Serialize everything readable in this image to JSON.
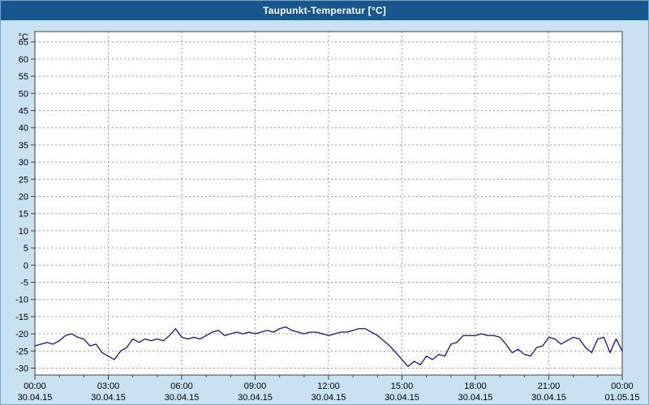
{
  "window": {
    "title": "Taupunkt-Temperatur [°C]"
  },
  "chart_data": {
    "type": "line",
    "title": "Taupunkt-Temperatur [°C]",
    "ylabel": "°C",
    "ylim": [
      -32,
      68
    ],
    "grid": true,
    "y_ticks": [
      65,
      60,
      55,
      50,
      45,
      40,
      35,
      30,
      25,
      20,
      15,
      10,
      5,
      0,
      -5,
      -10,
      -15,
      -20,
      -25,
      -30
    ],
    "x_ticks": [
      {
        "time": "00:00",
        "date": "30.04.15",
        "hour": 0
      },
      {
        "time": "03:00",
        "date": "30.04.15",
        "hour": 3
      },
      {
        "time": "06:00",
        "date": "30.04.15",
        "hour": 6
      },
      {
        "time": "09:00",
        "date": "30.04.15",
        "hour": 9
      },
      {
        "time": "12:00",
        "date": "30.04.15",
        "hour": 12
      },
      {
        "time": "15:00",
        "date": "30.04.15",
        "hour": 15
      },
      {
        "time": "18:00",
        "date": "30.04.15",
        "hour": 18
      },
      {
        "time": "21:00",
        "date": "30.04.15",
        "hour": 21
      },
      {
        "time": "00:00",
        "date": "01.05.15",
        "hour": 24
      }
    ],
    "x_range_hours": [
      0,
      24
    ],
    "x_step_hours": 0.25,
    "series": [
      {
        "name": "Taupunkt-Temperatur",
        "color": "#14148c",
        "values": [
          -23.5,
          -23,
          -22.5,
          -23,
          -22,
          -20.5,
          -20,
          -21,
          -21.5,
          -23.5,
          -23,
          -25.5,
          -26.5,
          -27.5,
          -25,
          -24,
          -21.5,
          -22.5,
          -21.5,
          -22,
          -21.5,
          -22,
          -20.5,
          -18.5,
          -21,
          -21.5,
          -21,
          -21.5,
          -20.5,
          -19.5,
          -19,
          -20.5,
          -20,
          -19.5,
          -20,
          -19.5,
          -20,
          -19.5,
          -19,
          -19.5,
          -18.5,
          -18,
          -19,
          -19.5,
          -20,
          -19.5,
          -19.5,
          -20,
          -20.5,
          -20,
          -19.5,
          -19.5,
          -19,
          -18.5,
          -18.5,
          -19.5,
          -20.5,
          -22,
          -23.5,
          -25.5,
          -27.5,
          -29.5,
          -28,
          -29,
          -26.5,
          -27.5,
          -26,
          -26.5,
          -23,
          -22.5,
          -20.5,
          -20.5,
          -20.5,
          -20,
          -20.5,
          -20.5,
          -21,
          -23,
          -25.5,
          -24.5,
          -26,
          -26.5,
          -24,
          -23.5,
          -21,
          -21.5,
          -23,
          -22,
          -21,
          -21.5,
          -24,
          -25.5,
          -21.5,
          -21,
          -25.5,
          -21.5,
          -25
        ]
      }
    ],
    "colors": {
      "titlebar_bg": "#17568f",
      "chart_bg": "#c9e2f2",
      "plot_bg": "#ffffff",
      "grid": "#9a9a9a",
      "axis": "#404040"
    }
  }
}
